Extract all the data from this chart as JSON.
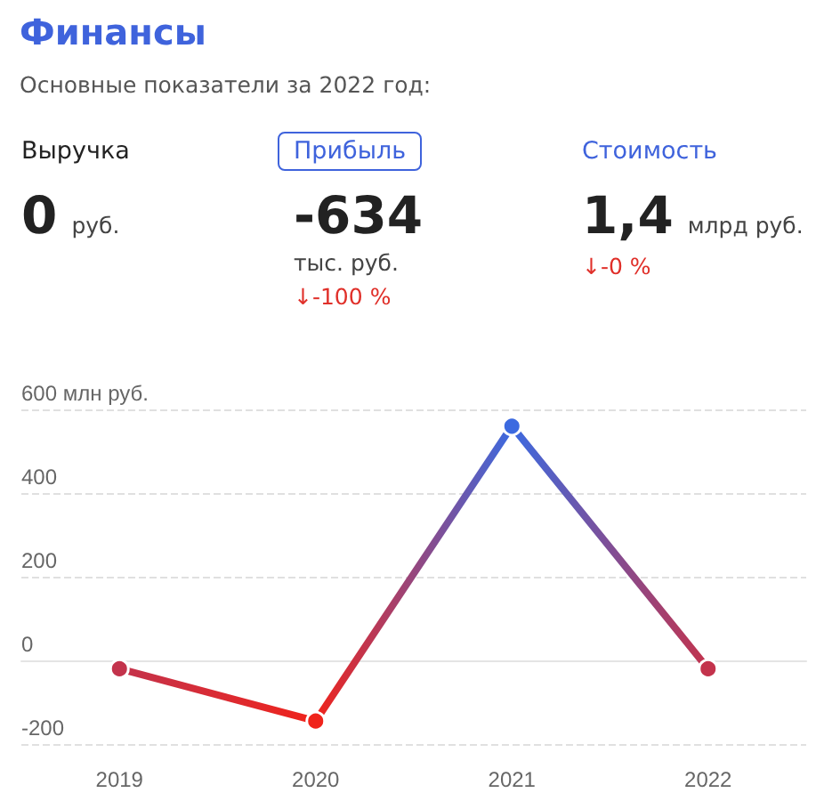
{
  "chart_data": [
    {
      "type": "other",
      "title": "Финансы",
      "subtitle": "Основные показатели за 2022 год:"
    },
    {
      "type": "other",
      "title": "Выручка",
      "annotations": [
        "0",
        "руб."
      ]
    },
    {
      "type": "other",
      "title": "Прибыль",
      "annotations": [
        "-634",
        "тыс. руб.",
        "↓-100 %"
      ]
    },
    {
      "type": "other",
      "title": "Стоимость",
      "annotations": [
        "1,4",
        "млрд руб.",
        "↓-0 %"
      ]
    },
    {
      "type": "line",
      "categories": [
        "2019",
        "2020",
        "2021",
        "2022"
      ],
      "series": [
        {
          "colors": [
            "#c3334c",
            "#f0231b",
            "#3c6ae0",
            "#c3334c"
          ],
          "values": [
            -20,
            -145,
            560,
            -20
          ]
        }
      ],
      "ylim": [
        -200,
        600
      ],
      "yticks": [
        -200,
        0,
        200,
        400,
        {
          "value": 600,
          "label": "600 млн руб."
        }
      ],
      "grid": "y",
      "marker": "circle",
      "line_style": "solid"
    }
  ]
}
